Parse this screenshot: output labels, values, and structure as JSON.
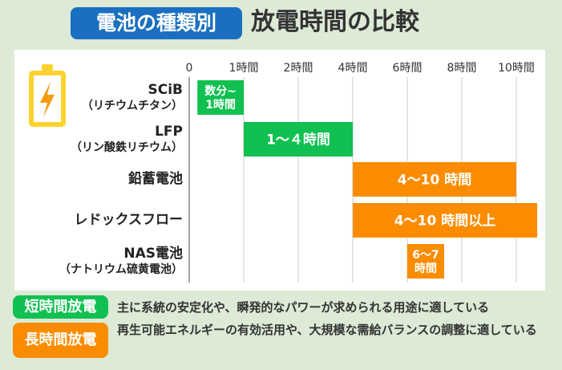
{
  "title": {
    "badge": "電池の種類別",
    "main": "放電時間の比較"
  },
  "colors": {
    "short": "#10c050",
    "long": "#fb8c00",
    "title_badge": "#1a6fc0",
    "battery_icon": "#fbd22e",
    "bolt": "#f39c12",
    "background": "#dcead6"
  },
  "icon": "battery-bolt-icon",
  "chart_data": {
    "type": "bar",
    "orientation": "horizontal-range",
    "x_ticks": [
      0,
      1,
      2,
      4,
      6,
      8,
      10
    ],
    "x_tick_labels": [
      "0",
      "1時間",
      "2時間",
      "4時間",
      "6時間",
      "8時間",
      "10時間"
    ],
    "x_scale": "non-uniform (ticks evenly spaced)",
    "grid": true,
    "rows": [
      {
        "name": "SCiB",
        "sub": "（リチウムチタン）",
        "start": 0.15,
        "end": 1,
        "label": "数分~\n1時間",
        "group": "short"
      },
      {
        "name": "LFP",
        "sub": "（リン酸鉄リチウム）",
        "start": 1,
        "end": 4,
        "label": "1～４時間",
        "group": "short"
      },
      {
        "name": "鉛蓄電池",
        "sub": "",
        "start": 4,
        "end": 10,
        "label": "4～10 時間",
        "group": "long"
      },
      {
        "name": "レドックスフロー",
        "sub": "",
        "start": 4,
        "end": 10,
        "open_ended": true,
        "label": "4～10 時間以上",
        "group": "long"
      },
      {
        "name": "NAS電池",
        "sub": "（ナトリウム硫黄電池）",
        "start": 6,
        "end": 7,
        "label": "6～7\n時間",
        "group": "long"
      }
    ]
  },
  "legend": [
    {
      "label": "短時間放電",
      "text": "主に系統の安定化や、瞬発的なパワーが求められる用途に適している"
    },
    {
      "label": "長時間放電",
      "text": "再生可能エネルギーの有効活用や、大規模な需給バランスの調整に適している"
    }
  ]
}
